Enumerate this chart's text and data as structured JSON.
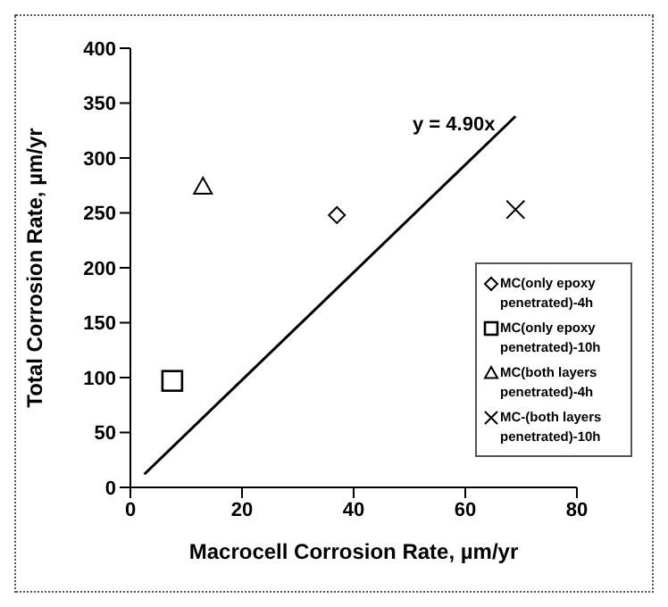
{
  "chart_data": {
    "type": "scatter",
    "xlabel": "Macrocell Corrosion Rate, µm/yr",
    "ylabel": "Total Corrosion Rate, µm/yr",
    "xlim": [
      0,
      80
    ],
    "xticks": [
      0,
      20,
      40,
      60,
      80
    ],
    "ylim": [
      0,
      400
    ],
    "yticks": [
      0,
      50,
      100,
      150,
      200,
      250,
      300,
      350,
      400
    ],
    "grid": false,
    "legend": "right",
    "series": [
      {
        "name": "MC(only epoxy penetrated)-4h",
        "color": "#000000",
        "marker": "diamond",
        "x": [
          37
        ],
        "values": [
          248
        ]
      },
      {
        "name": "MC(only epoxy penetrated)-10h",
        "color": "#000000",
        "marker": "square",
        "x": [
          7.5
        ],
        "values": [
          97
        ]
      },
      {
        "name": "MC(both layers penetrated)-4h",
        "color": "#000000",
        "marker": "triangle",
        "x": [
          13
        ],
        "values": [
          274
        ]
      },
      {
        "name": "MC-(both layers penetrated)-10h",
        "color": "#000000",
        "marker": "cross",
        "x": [
          69
        ],
        "values": [
          253
        ]
      },
      {
        "type": "line",
        "color": "#000000",
        "marker": "none",
        "x": [
          2.5,
          69
        ],
        "values": [
          12,
          338
        ]
      }
    ],
    "annotations": [
      "y = 4.90x"
    ]
  }
}
